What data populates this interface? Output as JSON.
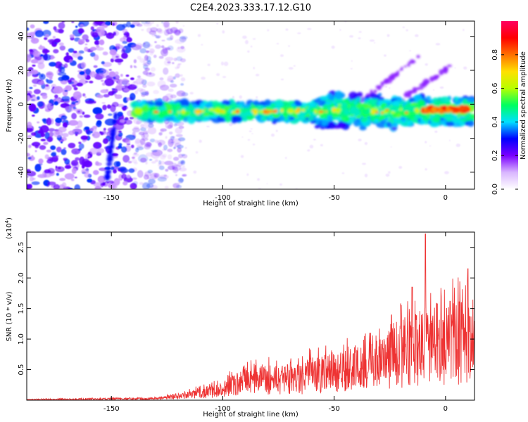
{
  "title": "C2E4.2023.333.17.12.G10",
  "chart_data": [
    {
      "type": "heatmap",
      "xlabel": "Height of straight line (km)",
      "ylabel": "Frequency (Hz)",
      "xlim": [
        -188,
        13
      ],
      "ylim": [
        -50,
        49
      ],
      "xticks": [
        -150,
        -100,
        -50,
        0
      ],
      "yticks": [
        -40,
        -20,
        0,
        20,
        40
      ],
      "colorbar": {
        "label": "Normalized spectral amplitude",
        "range": [
          0.0,
          1.0
        ],
        "ticks": [
          "0.0",
          "0.2",
          "0.4",
          "0.6",
          "0.8"
        ],
        "tick_values": [
          0.0,
          0.2,
          0.4,
          0.6,
          0.8
        ],
        "colormap": [
          "#ffffff",
          "#d9b6ff",
          "#7a00ff",
          "#0000ff",
          "#00e0ff",
          "#00ff60",
          "#b8ff00",
          "#ffe000",
          "#ff7000",
          "#ff0000",
          "#ff0060"
        ]
      },
      "features": {
        "noise_region_x": [
          -188,
          -125
        ],
        "track_center_hz": -4,
        "strong_segment_x": [
          -10,
          10
        ],
        "diagonal_tracks": [
          {
            "x": [
              -42,
              -12
            ],
            "y": [
              -2,
              28
            ]
          },
          {
            "x": [
              -25,
              2
            ],
            "y": [
              -2,
              22
            ]
          },
          {
            "x": [
              -152,
              -148
            ],
            "y": [
              -45,
              -5
            ]
          }
        ]
      }
    },
    {
      "type": "line",
      "xlabel": "Height of straight line (km)",
      "ylabel": "SNR (10 * v/v)",
      "y_multiplier": "(x10^4)",
      "xlim": [
        -188,
        13
      ],
      "ylim": [
        0,
        2.75
      ],
      "xticks": [
        -150,
        -100,
        -50,
        0
      ],
      "yticks": [
        "0.5",
        "1.0",
        "1.5",
        "2.0",
        "2.5"
      ],
      "ytick_values": [
        0.5,
        1.0,
        1.5,
        2.0,
        2.5
      ],
      "color": "#ee3333",
      "envelope_x": [
        -188,
        -150,
        -130,
        -120,
        -100,
        -90,
        -80,
        -70,
        -60,
        -50,
        -40,
        -30,
        -20,
        -10,
        -5,
        0,
        5,
        10,
        13
      ],
      "envelope_y": [
        0.02,
        0.04,
        0.05,
        0.1,
        0.3,
        0.55,
        0.6,
        0.55,
        0.7,
        0.75,
        0.9,
        1.0,
        1.3,
        1.5,
        1.6,
        1.55,
        1.7,
        1.6,
        1.3
      ],
      "peaks": [
        {
          "x": -9,
          "y": 2.72
        },
        {
          "x": 10,
          "y": 2.15
        },
        {
          "x": -20,
          "y": 1.55
        },
        {
          "x": -15,
          "y": 1.85
        },
        {
          "x": 2,
          "y": 1.62
        }
      ]
    }
  ]
}
